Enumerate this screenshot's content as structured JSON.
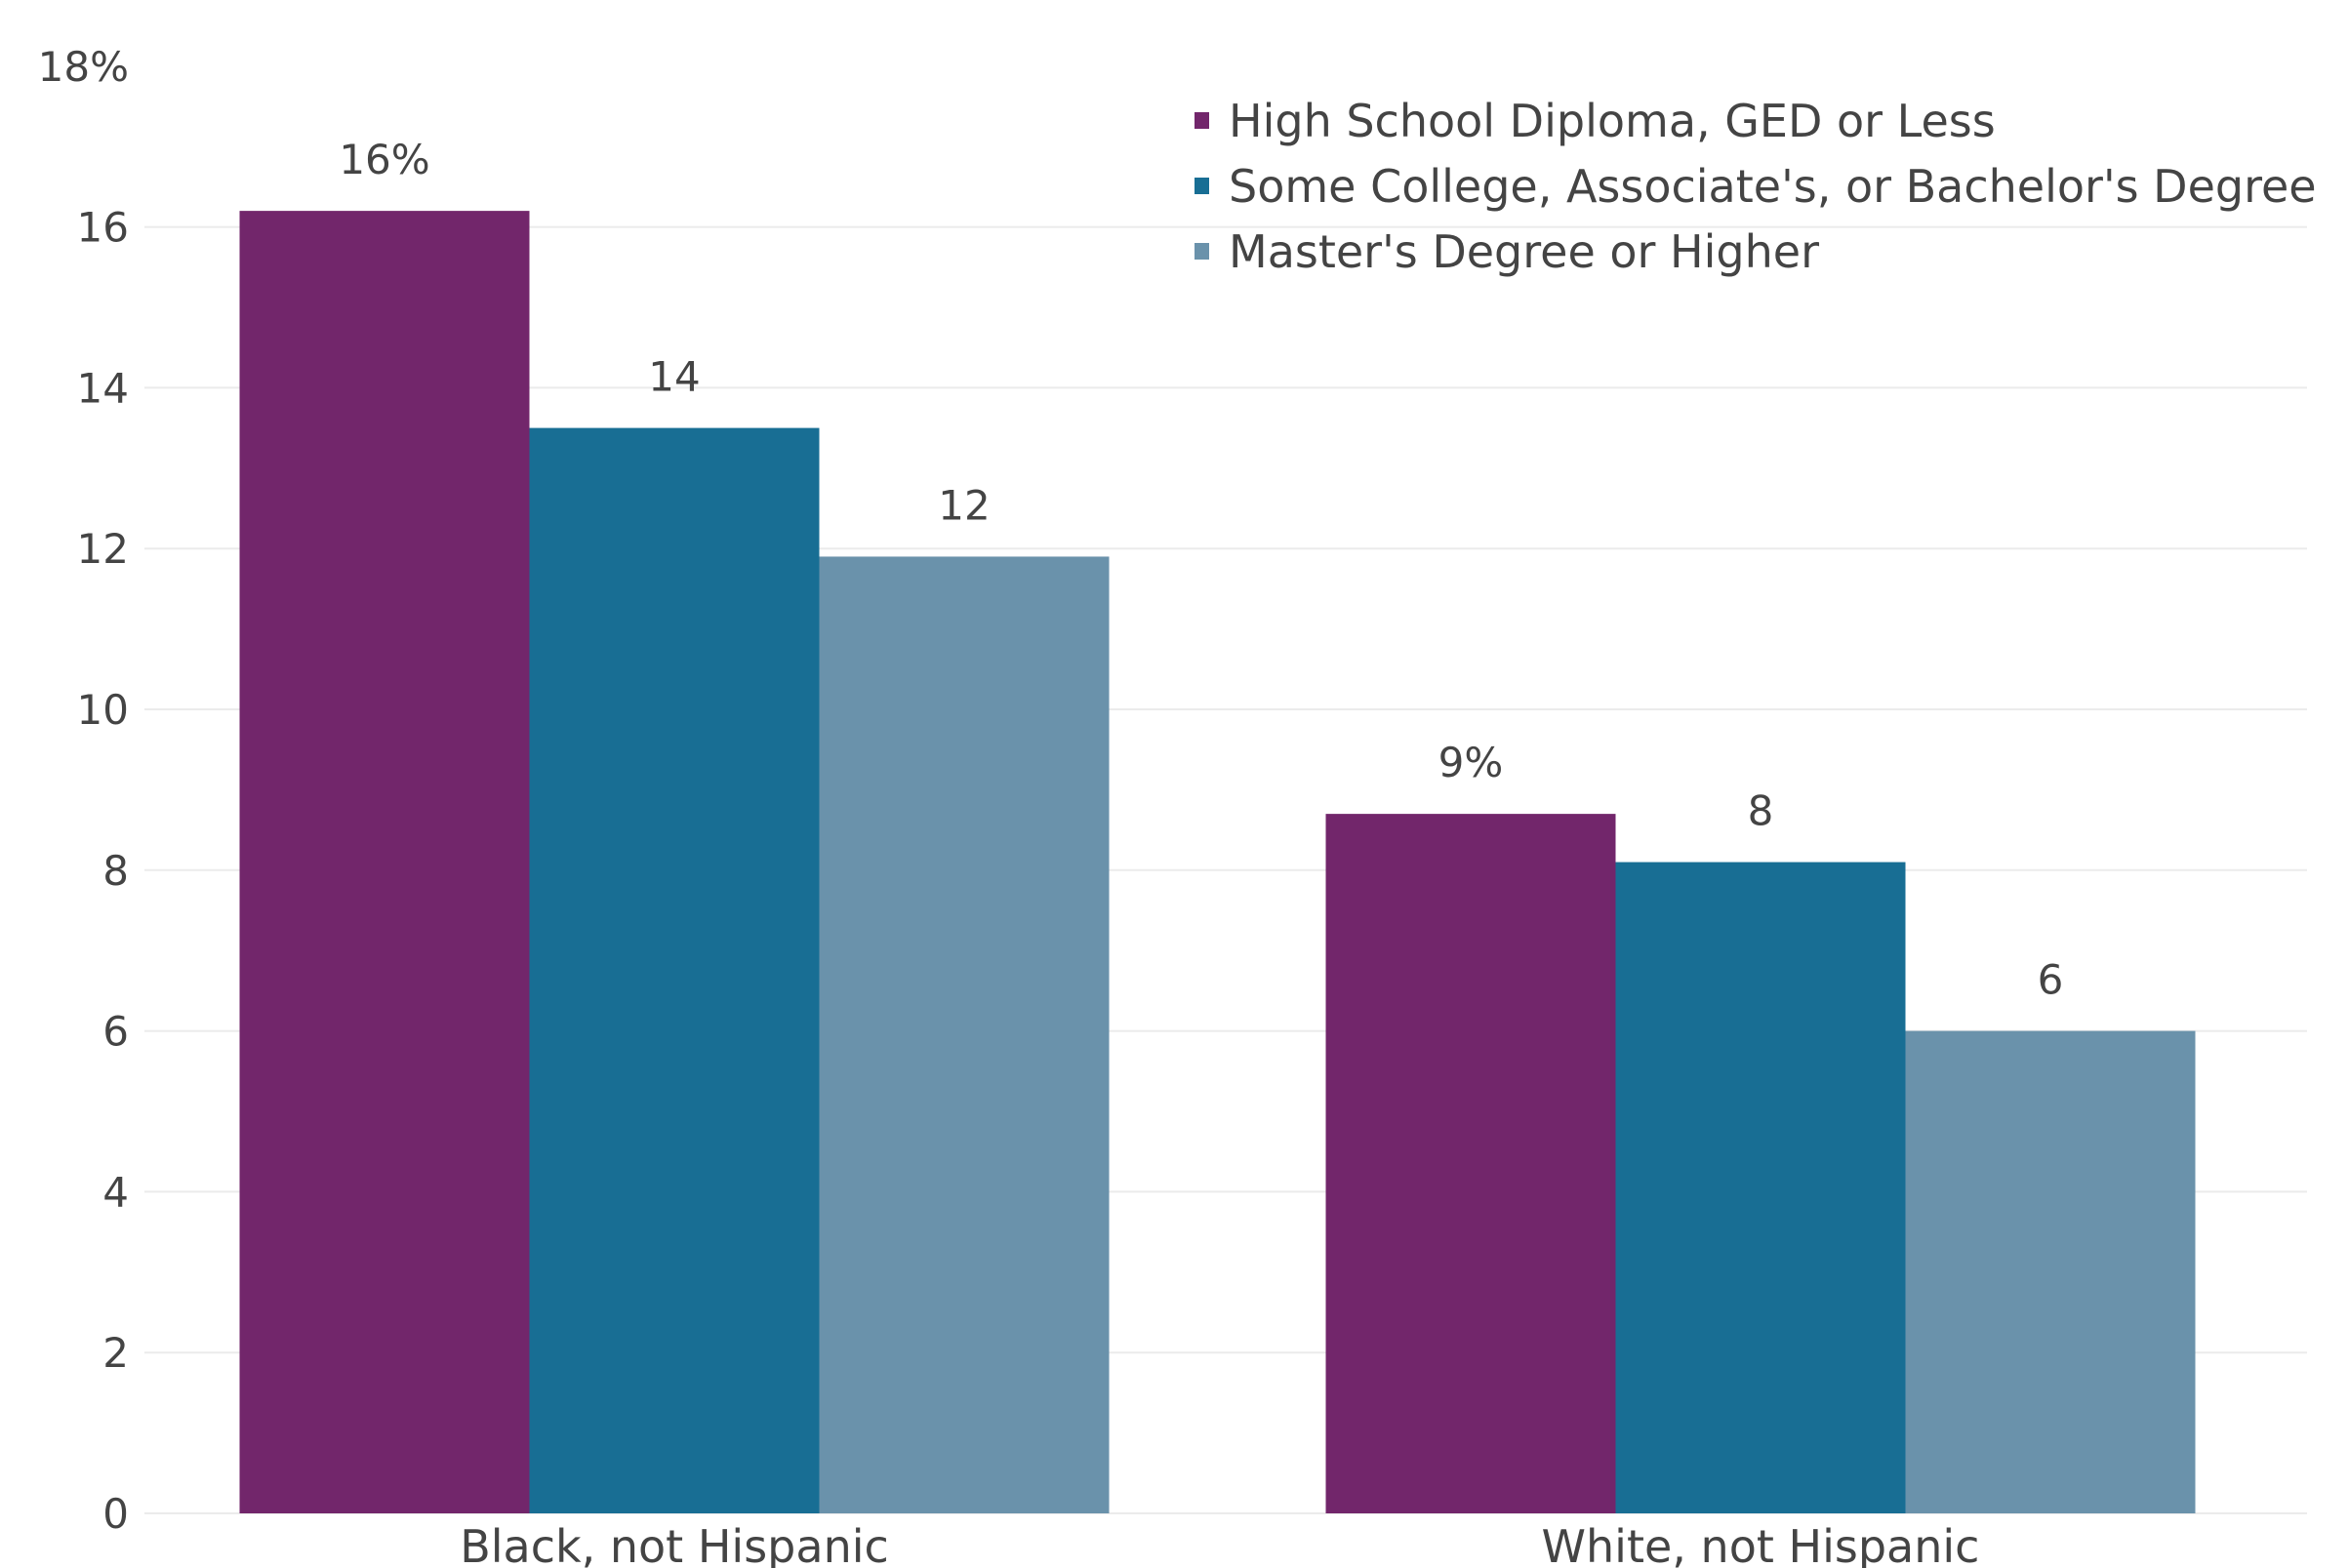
{
  "chart_data": {
    "type": "bar",
    "title": "",
    "xlabel": "",
    "ylabel": "",
    "ylim": [
      0,
      18
    ],
    "y_ticks": [
      0,
      2,
      4,
      6,
      8,
      10,
      12,
      14,
      16,
      18
    ],
    "y_tick_labels": [
      "0",
      "2",
      "4",
      "6",
      "8",
      "10",
      "12",
      "14",
      "16",
      "18%"
    ],
    "grid": true,
    "legend_position": "top-right",
    "categories": [
      "Black, not Hispanic",
      "White, not Hispanic"
    ],
    "series": [
      {
        "name": "High School Diploma, GED or Less",
        "color": "#72266B",
        "values": [
          16.2,
          8.7
        ],
        "labels": [
          "16%",
          "9%"
        ]
      },
      {
        "name": "Some College, Associate's, or Bachelor's Degree",
        "color": "#186E94",
        "values": [
          13.5,
          8.1
        ],
        "labels": [
          "14",
          "8"
        ]
      },
      {
        "name": "Master's Degree or Higher",
        "color": "#6A92AB",
        "values": [
          11.9,
          6.0
        ],
        "labels": [
          "12",
          "6"
        ]
      }
    ]
  }
}
